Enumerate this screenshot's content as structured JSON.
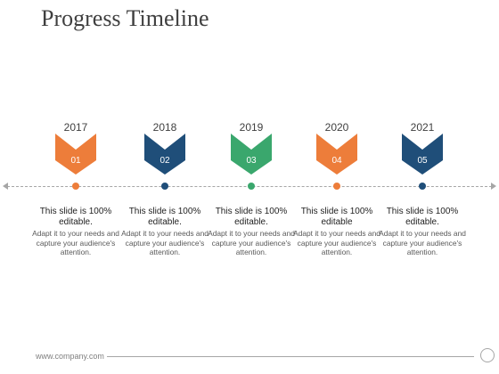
{
  "title": "Progress Timeline",
  "milestones": [
    {
      "year": "2017",
      "number": "01",
      "color": "#ED7D3A",
      "bold_text": "This slide is 100% editable.",
      "text": "Adapt it to your needs and capture your audience's attention."
    },
    {
      "year": "2018",
      "number": "02",
      "color": "#1F4E79",
      "bold_text": "This slide is 100% editable.",
      "text": "Adapt it to your needs and capture your audience's attention."
    },
    {
      "year": "2019",
      "number": "03",
      "color": "#3AA76D",
      "bold_text": "This slide is 100% editable.",
      "text": "Adapt it to your needs and capture your audience's attention."
    },
    {
      "year": "2020",
      "number": "04",
      "color": "#ED7D3A",
      "bold_text": "This slide is 100% editable",
      "text": "Adapt it to your needs and capture your audience's attention."
    },
    {
      "year": "2021",
      "number": "05",
      "color": "#1F4E79",
      "bold_text": "This slide is 100% editable.",
      "text": "Adapt it to your needs and capture your audience's attention."
    }
  ],
  "footer": {
    "website": "www.company.com"
  }
}
